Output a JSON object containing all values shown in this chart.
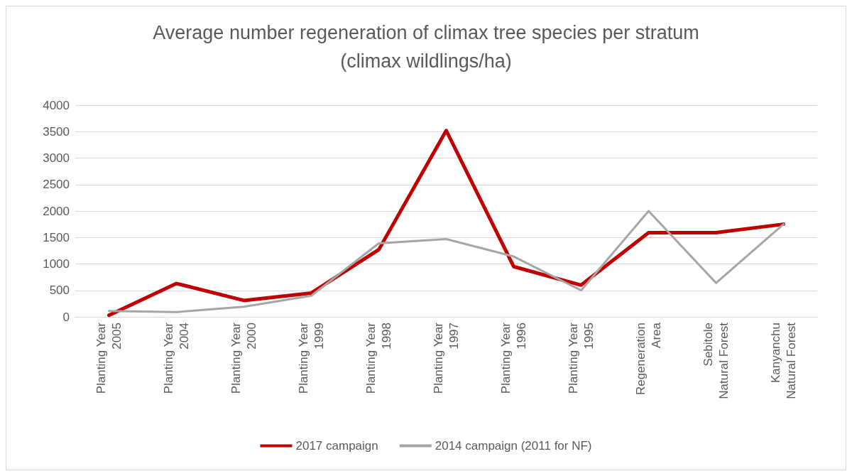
{
  "chart_data": {
    "type": "line",
    "title": "Average number regeneration of climax tree species per stratum\n(climax wildlings/ha)",
    "categories": [
      "Planting Year\n2005",
      "Planting Year\n2004",
      "Planting Year\n2000",
      "Planting Year\n1999",
      "Planting Year\n1998",
      "Planting Year\n1997",
      "Planting Year\n1996",
      "Planting Year\n1995",
      "Regeneration\nArea",
      "Sebitole\nNatural Forest",
      "Kanyanchu\nNatural Forest"
    ],
    "series": [
      {
        "name": "2017 campaign",
        "color": "#c00000",
        "values": [
          30,
          630,
          310,
          450,
          1270,
          3520,
          950,
          600,
          1590,
          1590,
          1750
        ]
      },
      {
        "name": "2014 campaign (2011 for NF)",
        "color": "#a5a5a5",
        "values": [
          110,
          90,
          190,
          400,
          1390,
          1470,
          1140,
          500,
          2000,
          640,
          1750
        ]
      }
    ],
    "ylim": [
      0,
      4000
    ],
    "yticks": [
      0,
      500,
      1000,
      1500,
      2000,
      2500,
      3000,
      3500,
      4000
    ],
    "grid": "y",
    "legend": "bottom",
    "marker": "none",
    "line_style": "solid"
  }
}
